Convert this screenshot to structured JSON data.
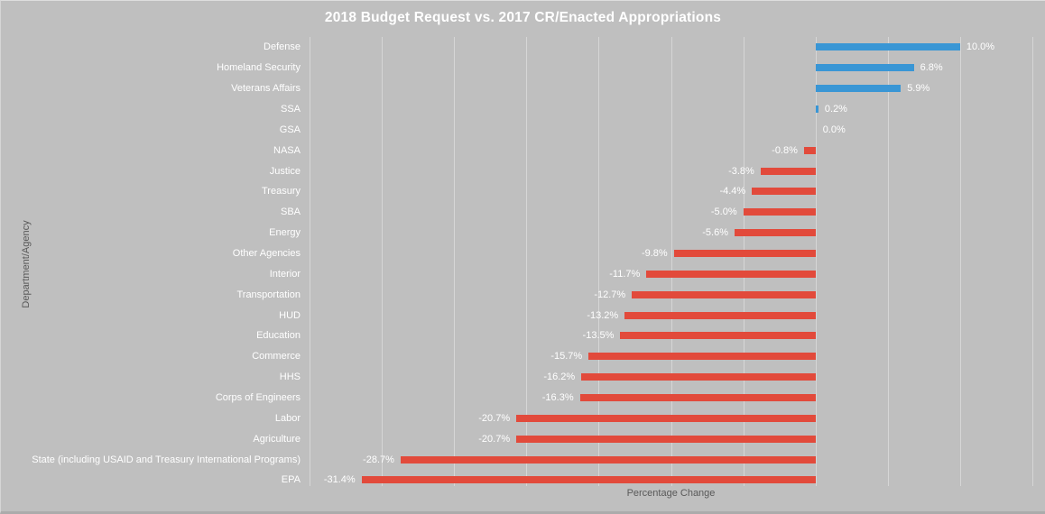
{
  "chart_data": {
    "type": "bar",
    "orientation": "horizontal",
    "title": "2018 Budget Request vs. 2017 CR/Enacted Appropriations",
    "xlabel": "Percentage Change",
    "ylabel": "Department/Agency",
    "categories": [
      "Defense",
      "Homeland Security",
      "Veterans Affairs",
      "SSA",
      "GSA",
      "NASA",
      "Justice",
      "Treasury",
      "SBA",
      "Energy",
      "Other Agencies",
      "Interior",
      "Transportation",
      "HUD",
      "Education",
      "Commerce",
      "HHS",
      "Corps of Engineers",
      "Labor",
      "Agriculture",
      "State (including USAID and Treasury International Programs)",
      "EPA"
    ],
    "values": [
      10.0,
      6.8,
      5.9,
      0.2,
      0.0,
      -0.8,
      -3.8,
      -4.4,
      -5.0,
      -5.6,
      -9.8,
      -11.7,
      -12.7,
      -13.2,
      -13.5,
      -15.7,
      -16.2,
      -16.3,
      -20.7,
      -20.7,
      -28.7,
      -31.4
    ],
    "data_labels": [
      "10.0%",
      "6.8%",
      "5.9%",
      "0.2%",
      "0.0%",
      "-0.8%",
      "-3.8%",
      "-4.4%",
      "-5.0%",
      "-5.6%",
      "-9.8%",
      "-11.7%",
      "-12.7%",
      "-13.2%",
      "-13.5%",
      "-15.7%",
      "-16.2%",
      "-16.3%",
      "-20.7%",
      "-20.7%",
      "-28.7%",
      "-31.4%"
    ],
    "xlim": [
      -35,
      15
    ],
    "gridline_step": 5,
    "x_tick_labels_visible": false,
    "grid": true,
    "legend": false,
    "colors": {
      "positive_bar": "#3996d5",
      "negative_bar": "#e24a3b",
      "background": "#bfbfbf",
      "gridline": "#d6d6d6",
      "axis_title_text": "#595959",
      "label_text": "#ffffff"
    }
  }
}
